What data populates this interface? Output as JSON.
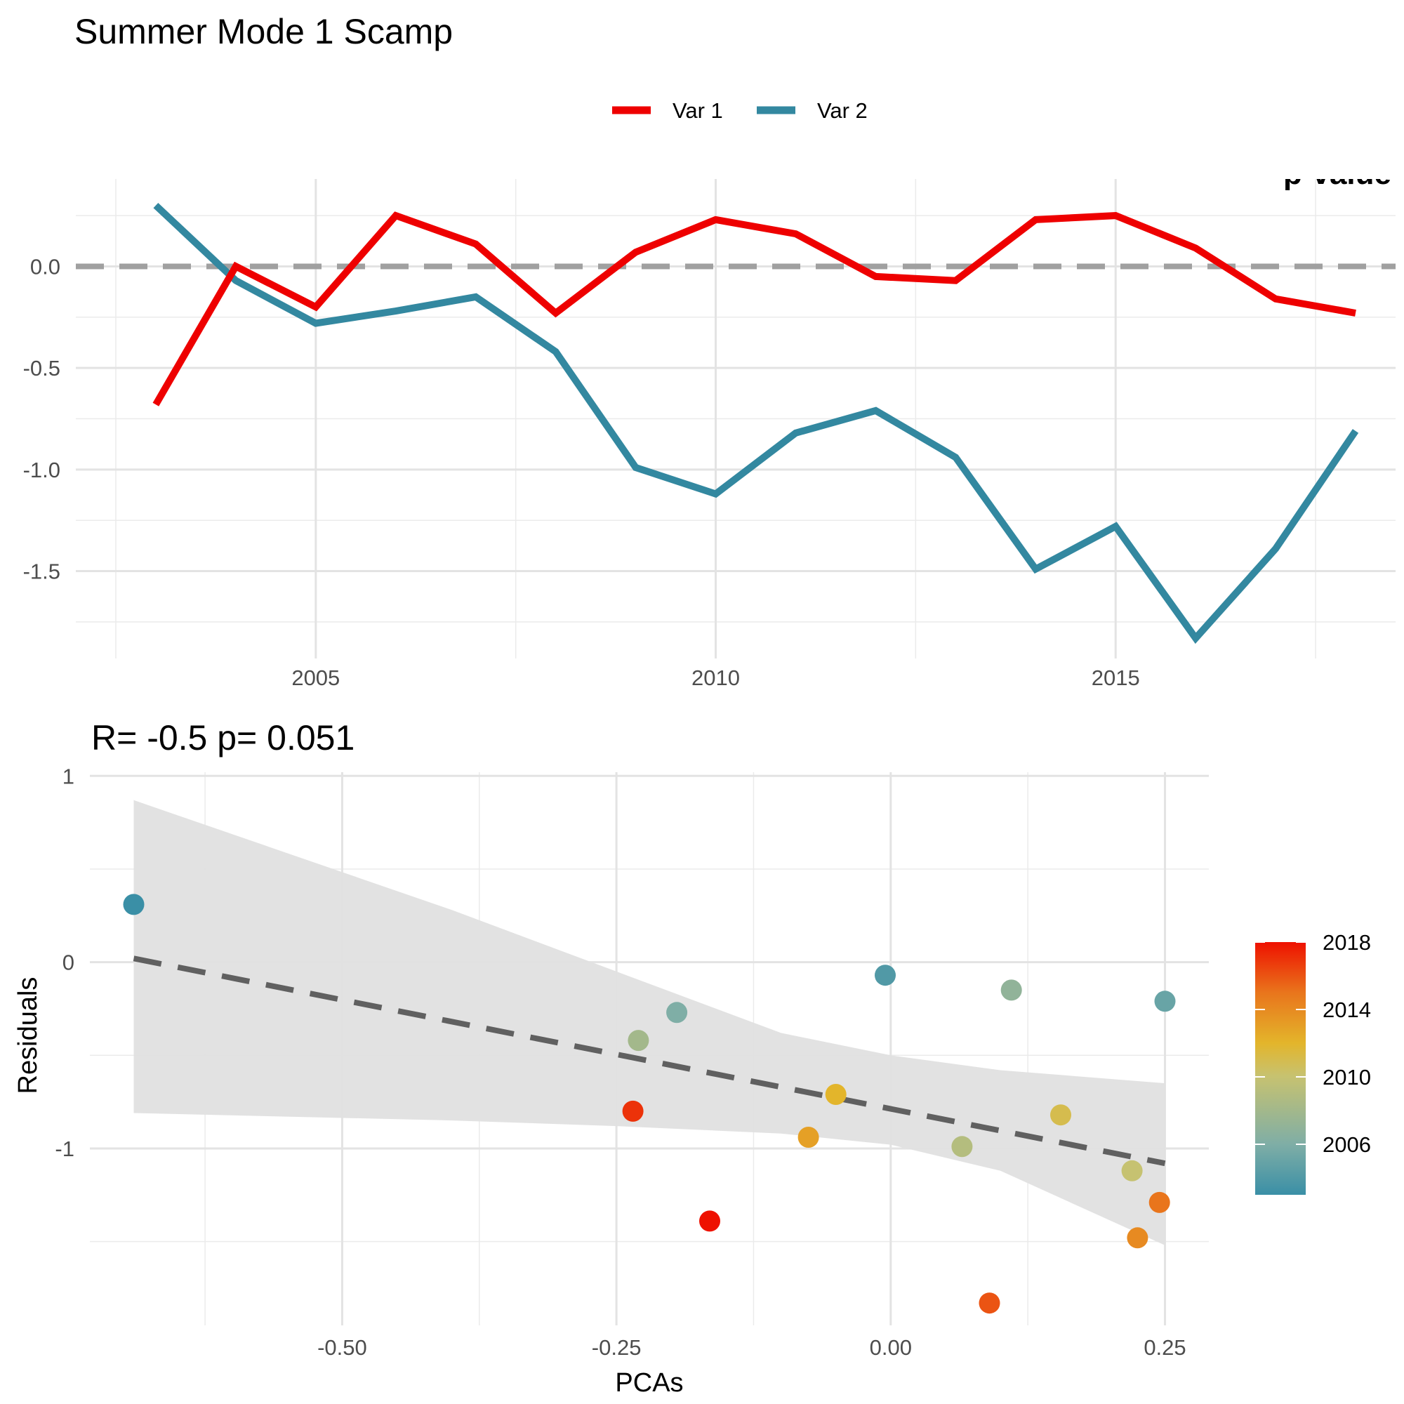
{
  "figure": {
    "title": "Summer Mode 1 Scamp",
    "partial_label": "p-value"
  },
  "chart_data": [
    {
      "type": "line",
      "title": "Summer Mode 1 Scamp",
      "xlabel": "",
      "ylabel": "",
      "x": [
        2003,
        2004,
        2005,
        2006,
        2007,
        2008,
        2009,
        2010,
        2011,
        2012,
        2013,
        2014,
        2015,
        2016,
        2017,
        2018
      ],
      "series": [
        {
          "name": "Var 1",
          "color": "#EE0000",
          "values": [
            -0.68,
            0.0,
            -0.2,
            0.25,
            0.11,
            -0.23,
            0.07,
            0.23,
            0.16,
            -0.05,
            -0.07,
            0.23,
            0.25,
            0.09,
            -0.16,
            -0.23
          ]
        },
        {
          "name": "Var 2",
          "color": "#3388A0",
          "values": [
            0.3,
            -0.07,
            -0.28,
            -0.22,
            -0.15,
            -0.42,
            -0.99,
            -1.12,
            -0.82,
            -0.71,
            -0.94,
            -1.49,
            -1.28,
            -1.83,
            -1.39,
            -0.81
          ]
        }
      ],
      "reference_line": {
        "y": 0,
        "style": "dashed",
        "color": "#A0A0A0"
      },
      "xlim": [
        2002.0,
        2018.5
      ],
      "ylim": [
        -1.93,
        0.43
      ],
      "x_ticks": [
        2005,
        2010,
        2015
      ],
      "x_tick_labels": [
        "2005",
        "2010",
        "2015"
      ],
      "y_ticks": [
        -1.5,
        -1.0,
        -0.5,
        0.0
      ],
      "y_tick_labels": [
        "-1.5",
        "-1.0",
        "-0.5",
        "0.0"
      ],
      "grid": true,
      "legend": {
        "position": "top",
        "entries": [
          "Var 1",
          "Var 2"
        ]
      }
    },
    {
      "type": "scatter",
      "title": "R= -0.5  p= 0.051",
      "xlabel": "PCAs",
      "ylabel": "Residuals",
      "points": [
        {
          "x": -0.69,
          "y": 0.31,
          "year": 2003
        },
        {
          "x": -0.005,
          "y": -0.07,
          "year": 2004
        },
        {
          "x": 0.25,
          "y": -0.21,
          "year": 2005
        },
        {
          "x": -0.195,
          "y": -0.27,
          "year": 2006
        },
        {
          "x": 0.11,
          "y": -0.15,
          "year": 2007
        },
        {
          "x": -0.23,
          "y": -0.42,
          "year": 2008
        },
        {
          "x": 0.065,
          "y": -0.99,
          "year": 2009
        },
        {
          "x": 0.22,
          "y": -1.12,
          "year": 2010
        },
        {
          "x": 0.155,
          "y": -0.82,
          "year": 2011
        },
        {
          "x": -0.05,
          "y": -0.71,
          "year": 2012
        },
        {
          "x": -0.075,
          "y": -0.94,
          "year": 2013
        },
        {
          "x": 0.225,
          "y": -1.48,
          "year": 2014
        },
        {
          "x": 0.245,
          "y": -1.29,
          "year": 2015
        },
        {
          "x": 0.09,
          "y": -1.83,
          "year": 2016
        },
        {
          "x": -0.235,
          "y": -0.8,
          "year": 2017
        },
        {
          "x": -0.165,
          "y": -1.39,
          "year": 2018
        }
      ],
      "fit_line": {
        "x": [
          -0.69,
          0.25
        ],
        "y": [
          0.02,
          -1.08
        ],
        "style": "dashed",
        "color": "#606060"
      },
      "confidence_band": {
        "x": [
          -0.69,
          -0.4,
          -0.25,
          -0.1,
          0.0,
          0.1,
          0.25
        ],
        "upper": [
          0.87,
          0.28,
          -0.05,
          -0.38,
          -0.5,
          -0.58,
          -0.65
        ],
        "lower": [
          -0.81,
          -0.85,
          -0.88,
          -0.92,
          -0.98,
          -1.12,
          -1.52
        ],
        "color": "#E0E0E0"
      },
      "xlim": [
        -0.73,
        0.29
      ],
      "ylim": [
        -1.95,
        1.02
      ],
      "x_ticks": [
        -0.5,
        -0.25,
        0.0,
        0.25
      ],
      "x_tick_labels": [
        "-0.50",
        "-0.25",
        "0.00",
        "0.25"
      ],
      "y_ticks": [
        -1,
        0,
        1
      ],
      "y_tick_labels": [
        "-1",
        "0",
        "1"
      ],
      "grid": true,
      "colorbar": {
        "min": 2003,
        "max": 2018,
        "ticks": [
          2006,
          2010,
          2014,
          2018
        ],
        "tick_labels": [
          "2006",
          "2010",
          "2014",
          "2018"
        ],
        "colors": [
          "#3A8FA6",
          "#7FAEA6",
          "#C7C270",
          "#E3B52B",
          "#E9751C",
          "#EE1100"
        ],
        "position": "right"
      }
    }
  ]
}
